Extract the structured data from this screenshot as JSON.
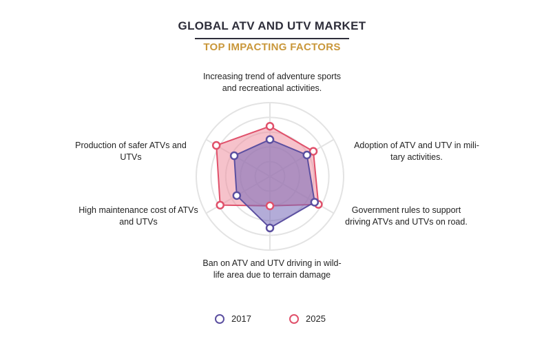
{
  "title": "GLOBAL ATV AND UTV MARKET",
  "subtitle": "TOP IMPACTING FACTORS",
  "chart_data": {
    "type": "radar",
    "scale": {
      "min": 0,
      "max": 5,
      "rings": 5
    },
    "axes": [
      "Increasing trend of adventure sports and recreational activities.",
      "Adoption of ATV and UTV in military activities.",
      "Government rules to support driving ATVs and UTVs on road.",
      "Ban on ATV and UTV driving in wildlife area due to terrain damage",
      "High maintenance cost of ATVs and UTVs",
      "Production of safer ATVs and UTVs"
    ],
    "axis_display": [
      "Increasing trend of adventure sports<br>and recreational activities.",
      "Adoption of ATV and UTV in mili-<br>tary activities.",
      "Government rules to support<br>driving ATVs and UTVs on road.",
      "Ban on ATV and UTV driving in wild-<br>life area due to terrain damage",
      "High maintenance cost of ATVs<br>and UTVs",
      "Production of safer ATVs and<br>UTVs"
    ],
    "series": [
      {
        "name": "2017",
        "values": [
          2.5,
          2.9,
          3.5,
          3.5,
          2.6,
          2.8
        ],
        "color": "#5b4fa0",
        "fill": "#7467b8"
      },
      {
        "name": "2025",
        "values": [
          3.4,
          3.4,
          3.8,
          2.0,
          3.9,
          4.2
        ],
        "color": "#e0506a",
        "fill": "#ee8fa0"
      }
    ]
  }
}
